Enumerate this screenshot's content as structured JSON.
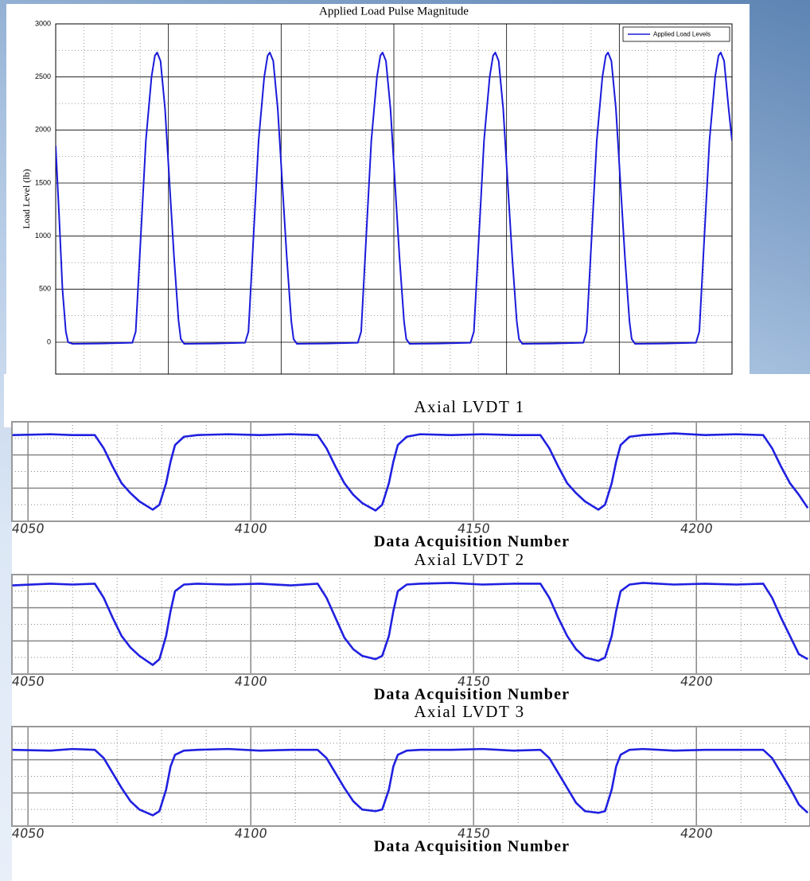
{
  "chart_data": [
    {
      "type": "line",
      "title": "Applied Load Pulse Magnitude",
      "ylabel": "Load Level (lb)",
      "legend": "upper right",
      "x": [
        0,
        0.03,
        0.06,
        0.09,
        0.11,
        0.15,
        0.4,
        0.68,
        0.71,
        0.75,
        0.8,
        0.85,
        0.88,
        0.9,
        0.93,
        0.97,
        1.01,
        1.05,
        1.09,
        1.11,
        1.14,
        1.4,
        1.68,
        1.71,
        1.75,
        1.8,
        1.85,
        1.88,
        1.9,
        1.93,
        1.97,
        2.01,
        2.05,
        2.09,
        2.11,
        2.14,
        2.4,
        2.68,
        2.71,
        2.75,
        2.8,
        2.85,
        2.88,
        2.9,
        2.93,
        2.97,
        3.01,
        3.05,
        3.09,
        3.11,
        3.14,
        3.4,
        3.68,
        3.71,
        3.75,
        3.8,
        3.85,
        3.88,
        3.9,
        3.93,
        3.97,
        4.01,
        4.05,
        4.09,
        4.11,
        4.14,
        4.4,
        4.68,
        4.71,
        4.75,
        4.8,
        4.85,
        4.88,
        4.9,
        4.93,
        4.97,
        5.01,
        5.05,
        5.09,
        5.11,
        5.14,
        5.4,
        5.68,
        5.71,
        5.75,
        5.8,
        5.85,
        5.88,
        5.9,
        5.93,
        5.97,
        6.0
      ],
      "series": [
        {
          "name": "Applied Load Levels",
          "color": "#1a1adb",
          "values": [
            1850,
            1200,
            500,
            100,
            0,
            -15,
            -12,
            -5,
            100,
            900,
            1900,
            2500,
            2700,
            2730,
            2650,
            2200,
            1500,
            800,
            200,
            30,
            -15,
            -12,
            -5,
            100,
            900,
            1900,
            2500,
            2700,
            2730,
            2650,
            2200,
            1500,
            800,
            200,
            30,
            -15,
            -12,
            -5,
            100,
            900,
            1900,
            2500,
            2700,
            2730,
            2650,
            2200,
            1500,
            800,
            200,
            30,
            -15,
            -12,
            -5,
            100,
            900,
            1900,
            2500,
            2700,
            2730,
            2650,
            2200,
            1500,
            800,
            200,
            30,
            -15,
            -12,
            -5,
            100,
            900,
            1900,
            2500,
            2700,
            2730,
            2650,
            2200,
            1500,
            800,
            200,
            30,
            -15,
            -12,
            -5,
            100,
            900,
            1900,
            2500,
            2700,
            2730,
            2650,
            2200,
            1900
          ]
        }
      ],
      "xlim": [
        0,
        6
      ],
      "xgrid": [
        0,
        1,
        2,
        3,
        4,
        5,
        6
      ],
      "xminor": [
        0.25,
        0.5,
        0.75,
        1.25,
        1.5,
        1.75,
        2.25,
        2.5,
        2.75,
        3.25,
        3.5,
        3.75,
        4.25,
        4.5,
        4.75,
        5.25,
        5.5,
        5.75
      ],
      "ylim": [
        -300,
        3000
      ],
      "yticks": [
        0,
        500,
        1000,
        1500,
        2000,
        2500,
        3000
      ],
      "yminor": [
        250,
        750,
        1250,
        1750,
        2250,
        2750
      ],
      "grid": true
    },
    {
      "type": "line",
      "title": "Axial LVDT 1",
      "xlabel": "Data Acquisition Number",
      "x": [
        4046.5,
        4055,
        4060,
        4065,
        4067,
        4069,
        4071,
        4073,
        4075,
        4078,
        4079.5,
        4081,
        4082,
        4083,
        4085,
        4088,
        4095,
        4102,
        4109,
        4115,
        4117,
        4119,
        4121,
        4123,
        4125,
        4128,
        4129.5,
        4131,
        4132,
        4133,
        4135,
        4138,
        4145,
        4152,
        4159,
        4165,
        4167,
        4169,
        4171,
        4173,
        4175,
        4178,
        4179.5,
        4181,
        4182,
        4183,
        4185,
        4188,
        4195,
        4202,
        4209,
        4215,
        4217,
        4219,
        4221,
        4223,
        4225
      ],
      "series": [
        {
          "name": "Axial LVDT 1",
          "color": "#2020e0",
          "values": [
            5.2,
            5.25,
            5.2,
            5.2,
            4.4,
            3.3,
            2.3,
            1.7,
            1.2,
            0.7,
            1.0,
            2.3,
            3.6,
            4.6,
            5.1,
            5.2,
            5.25,
            5.2,
            5.25,
            5.2,
            4.4,
            3.3,
            2.3,
            1.6,
            1.1,
            0.65,
            1.0,
            2.3,
            3.6,
            4.6,
            5.1,
            5.25,
            5.2,
            5.25,
            5.2,
            5.2,
            4.4,
            3.3,
            2.3,
            1.7,
            1.2,
            0.7,
            1.0,
            2.3,
            3.6,
            4.6,
            5.1,
            5.2,
            5.3,
            5.2,
            5.25,
            5.2,
            4.4,
            3.3,
            2.3,
            1.6,
            0.8
          ]
        }
      ],
      "xlim": [
        4046.4,
        4225.5
      ],
      "xticks": [
        4050,
        4100,
        4150,
        4200
      ],
      "xminor": [
        4060,
        4070,
        4080,
        4090,
        4110,
        4120,
        4130,
        4140,
        4160,
        4170,
        4180,
        4190,
        4210,
        4220
      ],
      "ylim": [
        0,
        6
      ],
      "ygrid": [
        2,
        4
      ],
      "yminor": [
        1,
        3,
        5
      ],
      "grid": true
    },
    {
      "type": "line",
      "title": "Axial LVDT 2",
      "xlabel": "Data Acquisition Number",
      "x": [
        4046.5,
        4055,
        4060,
        4065,
        4067,
        4069,
        4071,
        4073,
        4075,
        4078,
        4079.5,
        4081,
        4082,
        4083,
        4085,
        4088,
        4095,
        4102,
        4109,
        4115,
        4117,
        4119,
        4121,
        4123,
        4125,
        4128,
        4129.5,
        4131,
        4132,
        4133,
        4135,
        4138,
        4145,
        4152,
        4159,
        4165,
        4167,
        4169,
        4171,
        4173,
        4175,
        4178,
        4179.5,
        4181,
        4182,
        4183,
        4185,
        4188,
        4195,
        4202,
        4209,
        4215,
        4217,
        4219,
        4221,
        4223,
        4225
      ],
      "series": [
        {
          "name": "Axial LVDT 2",
          "color": "#2020e0",
          "values": [
            5.35,
            5.45,
            5.4,
            5.45,
            4.6,
            3.4,
            2.3,
            1.6,
            1.1,
            0.55,
            0.9,
            2.3,
            3.8,
            5.0,
            5.4,
            5.45,
            5.4,
            5.45,
            5.35,
            5.45,
            4.6,
            3.4,
            2.2,
            1.5,
            1.1,
            0.9,
            1.1,
            2.3,
            3.8,
            5.0,
            5.4,
            5.45,
            5.5,
            5.4,
            5.45,
            5.45,
            4.6,
            3.4,
            2.3,
            1.5,
            1.0,
            0.8,
            1.0,
            2.3,
            3.8,
            5.0,
            5.4,
            5.5,
            5.4,
            5.45,
            5.4,
            5.45,
            4.6,
            3.4,
            2.3,
            1.2,
            0.9
          ]
        }
      ],
      "xlim": [
        4046.4,
        4225.5
      ],
      "xticks": [
        4050,
        4100,
        4150,
        4200
      ],
      "xminor": [
        4060,
        4070,
        4080,
        4090,
        4110,
        4120,
        4130,
        4140,
        4160,
        4170,
        4180,
        4190,
        4210,
        4220
      ],
      "ylim": [
        0,
        6
      ],
      "ygrid": [
        2,
        4
      ],
      "yminor": [
        1,
        3,
        5
      ],
      "grid": true
    },
    {
      "type": "line",
      "title": "Axial LVDT 3",
      "xlabel": "Data Acquisition Number",
      "x": [
        4046.5,
        4055,
        4060,
        4065,
        4067,
        4069,
        4071,
        4073,
        4075,
        4078,
        4079.5,
        4081,
        4082,
        4083,
        4085,
        4088,
        4095,
        4102,
        4109,
        4115,
        4117,
        4119,
        4121,
        4123,
        4125,
        4128,
        4129.5,
        4131,
        4132,
        4133,
        4135,
        4138,
        4145,
        4152,
        4159,
        4165,
        4167,
        4169,
        4171,
        4173,
        4175,
        4178,
        4179.5,
        4181,
        4182,
        4183,
        4185,
        4188,
        4195,
        4202,
        4209,
        4215,
        4217,
        4219,
        4221,
        4223,
        4225
      ],
      "series": [
        {
          "name": "Axial LVDT 3",
          "color": "#2020e0",
          "values": [
            4.6,
            4.55,
            4.65,
            4.6,
            4.1,
            3.2,
            2.3,
            1.5,
            1.0,
            0.65,
            0.9,
            2.2,
            3.6,
            4.3,
            4.55,
            4.6,
            4.65,
            4.55,
            4.6,
            4.6,
            4.1,
            3.2,
            2.3,
            1.5,
            1.0,
            0.9,
            1.0,
            2.2,
            3.6,
            4.3,
            4.55,
            4.6,
            4.6,
            4.65,
            4.55,
            4.6,
            4.1,
            3.2,
            2.3,
            1.4,
            0.9,
            0.8,
            0.9,
            2.2,
            3.6,
            4.3,
            4.6,
            4.65,
            4.55,
            4.6,
            4.6,
            4.6,
            4.1,
            3.2,
            2.3,
            1.3,
            0.8
          ]
        }
      ],
      "xlim": [
        4046.4,
        4225.5
      ],
      "xticks": [
        4050,
        4100,
        4150,
        4200
      ],
      "xminor": [
        4060,
        4070,
        4080,
        4090,
        4110,
        4120,
        4130,
        4140,
        4160,
        4170,
        4180,
        4190,
        4210,
        4220
      ],
      "ylim": [
        0,
        6
      ],
      "ygrid": [
        2,
        4
      ],
      "yminor": [
        1,
        3,
        5
      ],
      "grid": true
    }
  ]
}
